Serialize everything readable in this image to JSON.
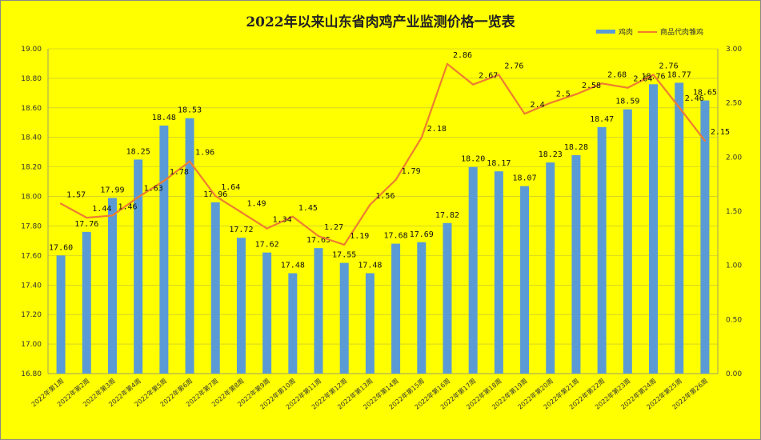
{
  "chart_data": {
    "type": "bar",
    "title": "2022年以来山东省肉鸡产业监测价格一览表",
    "categories": [
      "2022年第1周",
      "2022年第2周",
      "2022年第3周",
      "2022年第4周",
      "2022年第5周",
      "2022年第6周",
      "2022年第7周",
      "2022年第8周",
      "2022年第9周",
      "2022年第10周",
      "2022年第11周",
      "2022年第12周",
      "2022年第13周",
      "2022年第14周",
      "2022年第15周",
      "2022年第16周",
      "2022年第17周",
      "2022年第18周",
      "2022年第19周",
      "2022年第20周",
      "2022年第21周",
      "2022年第22周",
      "2022年第23周",
      "2022年第24周",
      "2022年第25周",
      "2022年第26周"
    ],
    "series": [
      {
        "name": "鸡肉",
        "type": "bar",
        "axis": "left",
        "color": "#5b9bd5",
        "values": [
          17.6,
          17.76,
          17.99,
          18.25,
          18.48,
          18.53,
          17.96,
          17.72,
          17.62,
          17.48,
          17.65,
          17.55,
          17.48,
          17.68,
          17.69,
          17.82,
          18.2,
          18.17,
          18.07,
          18.23,
          18.28,
          18.47,
          18.59,
          18.76,
          18.77,
          18.65
        ]
      },
      {
        "name": "商品代肉雏鸡",
        "type": "line",
        "axis": "right",
        "color": "#ed7d31",
        "values": [
          1.57,
          1.44,
          1.46,
          1.63,
          1.78,
          1.96,
          1.64,
          1.49,
          1.34,
          1.45,
          1.27,
          1.19,
          1.56,
          1.79,
          2.18,
          2.86,
          2.67,
          2.76,
          2.4,
          2.5,
          2.58,
          2.68,
          2.64,
          2.76,
          2.46,
          2.15
        ]
      }
    ],
    "bar_labels": [
      "17.60",
      "17.76",
      "17.99",
      "18.25",
      "18.48",
      "18.53",
      "17.96",
      "17.72",
      "17.62",
      "17.48",
      "17.65",
      "17.55",
      "17.48",
      "17.68",
      "17.69",
      "17.82",
      "18.20",
      "18.17",
      "18.07",
      "18.23",
      "18.28",
      "18.47",
      "18.59",
      "18.76",
      "18.77",
      "18.65"
    ],
    "line_labels": [
      "1.57",
      "1.44",
      "1.46",
      "1.63",
      "1.78",
      "1.96",
      "1.64",
      "1.49",
      "1.34",
      "1.45",
      "1.27",
      "1.19",
      "1.56",
      "1.79",
      "2.18",
      "2.86",
      "2.67",
      "2.76",
      "2.4",
      "2.5",
      "2.58",
      "2.68",
      "2.64",
      "2.76",
      "2.46",
      "2.15"
    ],
    "y_left": {
      "min": 16.8,
      "max": 19.0,
      "ticks": [
        "16.80",
        "17.00",
        "17.20",
        "17.40",
        "17.60",
        "17.80",
        "18.00",
        "18.20",
        "18.40",
        "18.60",
        "18.80",
        "19.00"
      ]
    },
    "y_right": {
      "min": 0,
      "max": 3.0,
      "ticks": [
        "0.00",
        "0.50",
        "1.00",
        "1.50",
        "2.00",
        "2.50",
        "3.00"
      ]
    },
    "grid": true,
    "legend_position": "top-right"
  }
}
